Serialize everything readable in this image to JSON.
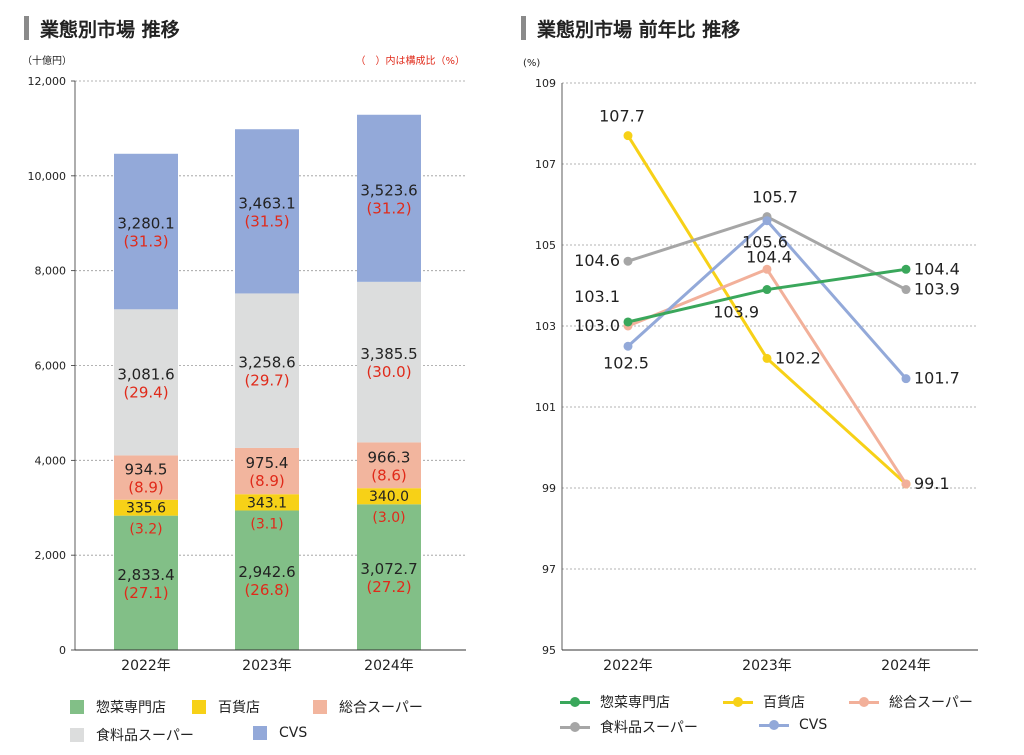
{
  "left_chart": {
    "title": "業態別市場 推移",
    "unit_label": "（十億円）",
    "note": "（　）内は構成比（%）",
    "y_ticks": [
      "0",
      "2,000",
      "4,000",
      "6,000",
      "8,000",
      "10,000",
      "12,000"
    ]
  },
  "right_chart": {
    "title": "業態別市場 前年比 推移",
    "unit_label": "(%)",
    "y_ticks": [
      "95",
      "97",
      "99",
      "101",
      "103",
      "105",
      "107",
      "109"
    ]
  },
  "colors": {
    "惣菜専門店": "#82bf87",
    "百貨店": "#f7d117",
    "総合スーパー": "#f2b59e",
    "食料品スーパー": "#dcdddd",
    "CVS": "#93a9d9",
    "line_惣菜専門店": "#3aa75b",
    "line_百貨店": "#f7d117",
    "line_総合スーパー": "#f2b09a",
    "line_食料品スーパー": "#a6a6a6",
    "line_CVS": "#93a9d9",
    "share_text": "#e02a1a"
  },
  "chart_data": [
    {
      "type": "bar",
      "stacked": true,
      "title": "業態別市場 推移",
      "ylabel": "（十億円）",
      "ylim": [
        0,
        12000
      ],
      "grid": true,
      "legend_placement": "bottom",
      "categories": [
        "2022年",
        "2023年",
        "2024年"
      ],
      "series": [
        {
          "name": "惣菜専門店",
          "values": [
            2833.4,
            2942.6,
            3072.7
          ],
          "labels": [
            "2,833.4",
            "2,942.6",
            "3,072.7"
          ],
          "shares": [
            "(27.1)",
            "(26.8)",
            "(27.2)"
          ]
        },
        {
          "name": "百貨店",
          "values": [
            335.6,
            343.1,
            340.0
          ],
          "labels": [
            "335.6",
            "343.1",
            "340.0"
          ],
          "shares": [
            "(3.2)",
            "(3.1)",
            "(3.0)"
          ]
        },
        {
          "name": "総合スーパー",
          "values": [
            934.5,
            975.4,
            966.3
          ],
          "labels": [
            "934.5",
            "975.4",
            "966.3"
          ],
          "shares": [
            "(8.9)",
            "(8.9)",
            "(8.6)"
          ]
        },
        {
          "name": "食料品スーパー",
          "values": [
            3081.6,
            3258.6,
            3385.5
          ],
          "labels": [
            "3,081.6",
            "3,258.6",
            "3,385.5"
          ],
          "shares": [
            "(29.4)",
            "(29.7)",
            "(30.0)"
          ]
        },
        {
          "name": "CVS",
          "values": [
            3280.1,
            3463.1,
            3523.6
          ],
          "labels": [
            "3,280.1",
            "3,463.1",
            "3,523.6"
          ],
          "shares": [
            "(31.3)",
            "(31.5)",
            "(31.2)"
          ]
        }
      ]
    },
    {
      "type": "line",
      "title": "業態別市場 前年比 推移",
      "ylabel": "(%)",
      "ylim": [
        95,
        109
      ],
      "grid": true,
      "legend_placement": "bottom",
      "categories": [
        "2022年",
        "2023年",
        "2024年"
      ],
      "series": [
        {
          "name": "惣菜専門店",
          "values": [
            103.1,
            103.9,
            104.4
          ],
          "labels": [
            "103.1",
            "103.9",
            "104.4"
          ]
        },
        {
          "name": "百貨店",
          "values": [
            107.7,
            102.2,
            99.1
          ],
          "labels": [
            "107.7",
            "102.2",
            "99.1"
          ]
        },
        {
          "name": "総合スーパー",
          "values": [
            103.0,
            104.4,
            99.1
          ],
          "labels": [
            "103.0",
            "104.4",
            ""
          ]
        },
        {
          "name": "食料品スーパー",
          "values": [
            104.6,
            105.7,
            103.9
          ],
          "labels": [
            "104.6",
            "105.7",
            "103.9"
          ]
        },
        {
          "name": "CVS",
          "values": [
            102.5,
            105.6,
            101.7
          ],
          "labels": [
            "102.5",
            "105.6",
            "101.7"
          ]
        }
      ]
    }
  ]
}
